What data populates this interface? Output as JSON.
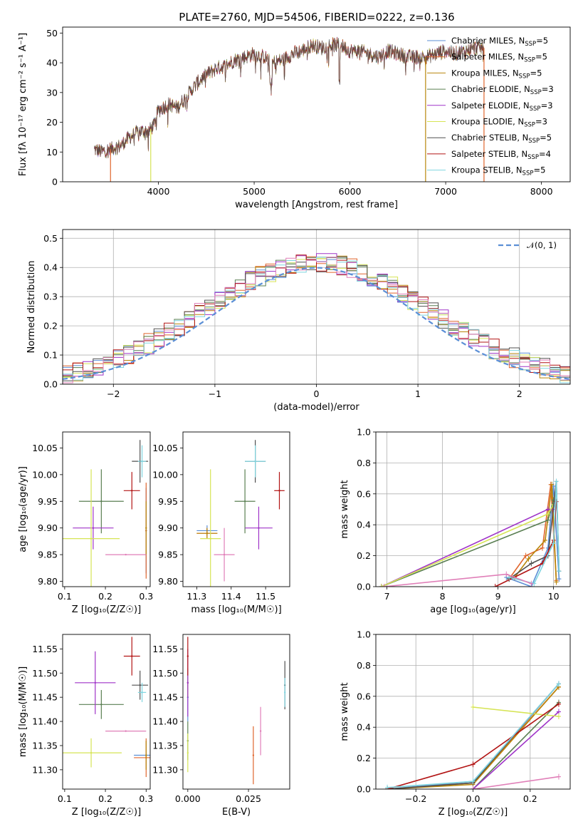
{
  "figure": {
    "title": "PLATE=2760, MJD=54506, FIBERID=0222, z=0.136"
  },
  "colors": {
    "chabrier_miles": "#5b8fd6",
    "salpeter_miles": "#e0662e",
    "kroupa_miles": "#b8860b",
    "chabrier_elodie": "#5a7f52",
    "salpeter_elodie": "#9f34c8",
    "kroupa_elodie": "#d6e455",
    "chabrier_stelib": "#505050",
    "salpeter_stelib": "#b21414",
    "kroupa_stelib": "#7fd5e0",
    "extra_pink": "#e07fb8",
    "gaussian": "#5b8fd6",
    "grid": "#b0b0b0"
  },
  "chart_data": [
    {
      "id": "spectrum",
      "type": "line",
      "title": "PLATE=2760, MJD=54506, FIBERID=0222, z=0.136",
      "xlabel": "wavelength [Angstrom, rest frame]",
      "ylabel": "Flux [fλ 10⁻¹⁷ erg cm⁻² s⁻¹ A⁻¹]",
      "xlim": [
        3000,
        8300
      ],
      "ylim": [
        0,
        52
      ],
      "xticks": [
        4000,
        5000,
        6000,
        7000,
        8000
      ],
      "yticks": [
        0,
        10,
        20,
        30,
        40,
        50
      ],
      "grid": false,
      "legend_position": "top-right",
      "legend": [
        {
          "label": "Chabrier MILES, N",
          "sub": "SSP",
          "post": "=5",
          "color": "#5b8fd6"
        },
        {
          "label": "Salpeter MILES, N",
          "sub": "SSP",
          "post": "=5",
          "color": "#e0662e"
        },
        {
          "label": "Kroupa MILES, N",
          "sub": "SSP",
          "post": "=5",
          "color": "#b8860b"
        },
        {
          "label": "Chabrier ELODIE, N",
          "sub": "SSP",
          "post": "=3",
          "color": "#5a7f52"
        },
        {
          "label": "Salpeter ELODIE, N",
          "sub": "SSP",
          "post": "=3",
          "color": "#9f34c8"
        },
        {
          "label": "Kroupa ELODIE, N",
          "sub": "SSP",
          "post": "=3",
          "color": "#d6e455"
        },
        {
          "label": "Chabrier STELIB, N",
          "sub": "SSP",
          "post": "=5",
          "color": "#505050"
        },
        {
          "label": "Salpeter STELIB, N",
          "sub": "SSP",
          "post": "=4",
          "color": "#b21414"
        },
        {
          "label": "Kroupa STELIB, N",
          "sub": "SSP",
          "post": "=5",
          "color": "#7fd5e0"
        }
      ],
      "x": [
        3330,
        3400,
        3500,
        3600,
        3700,
        3800,
        3900,
        3950,
        4000,
        4100,
        4200,
        4300,
        4400,
        4500,
        4600,
        4700,
        4800,
        4900,
        5000,
        5100,
        5200,
        5300,
        5400,
        5500,
        5600,
        5700,
        5800,
        5900,
        6000,
        6100,
        6200,
        6300,
        6400,
        6500,
        6600,
        6700,
        6800,
        6900,
        7000,
        7100,
        7200,
        7300,
        7400
      ],
      "y": [
        11,
        10,
        11,
        12,
        15,
        17,
        17,
        19,
        24,
        26,
        25,
        29,
        33,
        36,
        38,
        39,
        41,
        42,
        43,
        42,
        40,
        41,
        43,
        44,
        46,
        45,
        46,
        46,
        44,
        44,
        43,
        42,
        44,
        43,
        42,
        42,
        42,
        43,
        44,
        43,
        44,
        45,
        45
      ],
      "model_drop_wavelengths": [
        3500,
        3920,
        6790,
        7400
      ]
    },
    {
      "id": "residuals",
      "type": "bar",
      "xlabel": "(data-model)/error",
      "ylabel": "Normed distribution",
      "xlim": [
        -2.5,
        2.5
      ],
      "ylim": [
        0,
        0.53
      ],
      "xticks": [
        -2,
        -1,
        0,
        1,
        2
      ],
      "yticks": [
        0.0,
        0.1,
        0.2,
        0.3,
        0.4,
        0.5
      ],
      "grid": true,
      "legend_position": "top-right",
      "legend": [
        {
          "label": "𝒩(0, 1)",
          "style": "dashed",
          "color": "#5b8fd6"
        }
      ],
      "bin_width": 0.1,
      "bin_start": -2.5,
      "histogram_approx_peak": 0.5
    },
    {
      "id": "age_vs_Z",
      "type": "scatter",
      "xlabel": "Z [log₁₀(Z/Z☉)]",
      "ylabel": "age  [log₁₀(age/yr)]",
      "xlim": [
        0.095,
        0.31
      ],
      "ylim": [
        9.79,
        10.08
      ],
      "xticks": [
        0.1,
        0.2,
        0.3
      ],
      "yticks": [
        9.8,
        9.85,
        9.9,
        9.95,
        10.0,
        10.05
      ],
      "ytick_labels": [
        "9.80",
        "9.85",
        "9.90",
        "9.95",
        "10.00",
        "10.05"
      ],
      "points": [
        {
          "model": "Chabrier MILES",
          "x": 0.3,
          "y": 9.895,
          "xerr": 0.0,
          "yerr": 0.08
        },
        {
          "model": "Salpeter MILES",
          "x": 0.3,
          "y": 9.895,
          "xerr": 0.0,
          "yerr": 0.09
        },
        {
          "model": "Kroupa MILES",
          "x": 0.3,
          "y": 9.9,
          "xerr": 0.0,
          "yerr": 0.05
        },
        {
          "model": "Chabrier ELODIE",
          "x": 0.19,
          "y": 9.95,
          "xerr": 0.055,
          "yerr": 0.06
        },
        {
          "model": "Salpeter ELODIE",
          "x": 0.17,
          "y": 9.9,
          "xerr": 0.05,
          "yerr": 0.04
        },
        {
          "model": "Kroupa ELODIE",
          "x": 0.165,
          "y": 9.88,
          "xerr": 0.07,
          "yerr": 0.13
        },
        {
          "model": "Chabrier STELIB",
          "x": 0.285,
          "y": 10.025,
          "xerr": 0.02,
          "yerr": 0.04
        },
        {
          "model": "Salpeter STELIB",
          "x": 0.265,
          "y": 9.97,
          "xerr": 0.02,
          "yerr": 0.035
        },
        {
          "model": "Kroupa STELIB",
          "x": 0.29,
          "y": 10.025,
          "xerr": 0.01,
          "yerr": 0.03
        },
        {
          "model": "extra",
          "x": 0.25,
          "y": 9.85,
          "xerr": 0.05,
          "yerr": 0.0
        }
      ]
    },
    {
      "id": "age_vs_mass",
      "type": "scatter",
      "xlabel": "mass [log₁₀(M/M☉)]",
      "xlim": [
        11.26,
        11.57
      ],
      "ylim": [
        9.79,
        10.08
      ],
      "xticks": [
        11.3,
        11.4,
        11.5
      ],
      "yticks": [
        9.8,
        9.85,
        9.9,
        9.95,
        10.0,
        10.05
      ],
      "ytick_labels": [
        "9.80",
        "9.85",
        "9.90",
        "9.95",
        "10.00",
        "10.05"
      ],
      "points": [
        {
          "model": "Chabrier MILES",
          "x": 11.33,
          "y": 9.895,
          "xerr": 0.03,
          "yerr": 0.01
        },
        {
          "model": "Salpeter MILES",
          "x": 11.33,
          "y": 9.89,
          "xerr": 0.03,
          "yerr": 0.01
        },
        {
          "model": "Kroupa MILES",
          "x": 11.33,
          "y": 9.89,
          "xerr": 0.03,
          "yerr": 0.01
        },
        {
          "model": "Chabrier ELODIE",
          "x": 11.44,
          "y": 9.95,
          "xerr": 0.03,
          "yerr": 0.06
        },
        {
          "model": "Salpeter ELODIE",
          "x": 11.48,
          "y": 9.9,
          "xerr": 0.04,
          "yerr": 0.04
        },
        {
          "model": "Kroupa ELODIE",
          "x": 11.34,
          "y": 9.88,
          "xerr": 0.03,
          "yerr": 0.13
        },
        {
          "model": "Chabrier STELIB",
          "x": 11.47,
          "y": 10.025,
          "xerr": 0.03,
          "yerr": 0.04
        },
        {
          "model": "Salpeter STELIB",
          "x": 11.54,
          "y": 9.97,
          "xerr": 0.015,
          "yerr": 0.035
        },
        {
          "model": "Kroupa STELIB",
          "x": 11.47,
          "y": 10.025,
          "xerr": 0.03,
          "yerr": 0.03
        },
        {
          "model": "extra",
          "x": 11.38,
          "y": 9.85,
          "xerr": 0.03,
          "yerr": 0.05
        }
      ]
    },
    {
      "id": "weight_vs_age",
      "type": "line",
      "xlabel": "age  [log₁₀(age/yr)]",
      "ylabel": "mass weight",
      "xlim": [
        6.8,
        10.3
      ],
      "ylim": [
        0,
        1.0
      ],
      "xticks": [
        7,
        8,
        9,
        10
      ],
      "yticks": [
        0.0,
        0.2,
        0.4,
        0.6,
        0.8,
        1.0
      ],
      "grid": true,
      "series": [
        {
          "model": "Chabrier MILES",
          "x": [
            9.15,
            9.6,
            9.9,
            10.0,
            10.1
          ],
          "y": [
            0.06,
            0.0,
            0.25,
            0.65,
            0.05
          ]
        },
        {
          "model": "Salpeter MILES",
          "x": [
            9.2,
            9.5,
            9.8,
            9.95,
            10.05
          ],
          "y": [
            0.05,
            0.2,
            0.25,
            0.66,
            0.04
          ]
        },
        {
          "model": "Kroupa MILES",
          "x": [
            9.3,
            9.55,
            9.85,
            9.97,
            10.05
          ],
          "y": [
            0.06,
            0.18,
            0.3,
            0.66,
            0.03
          ]
        },
        {
          "model": "Chabrier ELODIE",
          "x": [
            6.9,
            9.9,
            10.0
          ],
          "y": [
            0.0,
            0.43,
            0.56
          ]
        },
        {
          "model": "Salpeter ELODIE",
          "x": [
            6.9,
            9.9,
            10.0
          ],
          "y": [
            0.0,
            0.5,
            0.5
          ]
        },
        {
          "model": "Kroupa ELODIE",
          "x": [
            6.9,
            9.9,
            10.0
          ],
          "y": [
            0.0,
            0.47,
            0.53
          ]
        },
        {
          "model": "Chabrier STELIB",
          "x": [
            9.2,
            9.6,
            9.9,
            10.05,
            10.1
          ],
          "y": [
            0.05,
            0.15,
            0.2,
            0.68,
            0.1
          ]
        },
        {
          "model": "Salpeter STELIB",
          "x": [
            8.95,
            9.8,
            10.0,
            10.05
          ],
          "y": [
            0.0,
            0.15,
            0.3,
            0.55
          ]
        },
        {
          "model": "Kroupa STELIB",
          "x": [
            9.2,
            9.65,
            10.0,
            10.05,
            10.1
          ],
          "y": [
            0.06,
            0.02,
            0.28,
            0.68,
            0.1
          ]
        },
        {
          "model": "extra",
          "x": [
            6.95,
            9.15,
            9.6
          ],
          "y": [
            0.0,
            0.08,
            0.02
          ]
        }
      ]
    },
    {
      "id": "mass_vs_Z",
      "type": "scatter",
      "xlabel": "Z [log₁₀(Z/Z☉)]",
      "ylabel": "mass [log₁₀(M/M☉)]",
      "xlim": [
        0.095,
        0.31
      ],
      "ylim": [
        11.26,
        11.58
      ],
      "xticks": [
        0.1,
        0.2,
        0.3
      ],
      "yticks": [
        11.3,
        11.35,
        11.4,
        11.45,
        11.5,
        11.55
      ],
      "ytick_labels": [
        "11.30",
        "11.35",
        "11.40",
        "11.45",
        "11.50",
        "11.55"
      ],
      "points": [
        {
          "model": "Chabrier MILES",
          "x": 0.3,
          "y": 11.33,
          "xerr": 0.03,
          "yerr": 0.0
        },
        {
          "model": "Salpeter MILES",
          "x": 0.3,
          "y": 11.325,
          "xerr": 0.03,
          "yerr": 0.04
        },
        {
          "model": "Kroupa MILES",
          "x": 0.3,
          "y": 11.33,
          "xerr": 0.0,
          "yerr": 0.03
        },
        {
          "model": "Chabrier ELODIE",
          "x": 0.19,
          "y": 11.435,
          "xerr": 0.055,
          "yerr": 0.03
        },
        {
          "model": "Salpeter ELODIE",
          "x": 0.175,
          "y": 11.48,
          "xerr": 0.05,
          "yerr": 0.065
        },
        {
          "model": "Kroupa ELODIE",
          "x": 0.165,
          "y": 11.335,
          "xerr": 0.075,
          "yerr": 0.03
        },
        {
          "model": "Chabrier STELIB",
          "x": 0.285,
          "y": 11.475,
          "xerr": 0.02,
          "yerr": 0.03
        },
        {
          "model": "Salpeter STELIB",
          "x": 0.265,
          "y": 11.535,
          "xerr": 0.02,
          "yerr": 0.04
        },
        {
          "model": "Kroupa STELIB",
          "x": 0.29,
          "y": 11.46,
          "xerr": 0.01,
          "yerr": 0.02
        },
        {
          "model": "extra",
          "x": 0.25,
          "y": 11.38,
          "xerr": 0.05,
          "yerr": 0.0
        }
      ]
    },
    {
      "id": "mass_vs_EBV",
      "type": "scatter",
      "xlabel": "E(B-V)",
      "xlim": [
        -0.002,
        0.042
      ],
      "ylim": [
        11.26,
        11.58
      ],
      "xticks": [
        0.0,
        0.025
      ],
      "xtick_labels": [
        "0.000",
        "0.025"
      ],
      "yticks": [
        11.3,
        11.35,
        11.4,
        11.45,
        11.5,
        11.55
      ],
      "ytick_labels": [
        "11.30",
        "11.35",
        "11.40",
        "11.45",
        "11.50",
        "11.55"
      ],
      "points": [
        {
          "model": "Chabrier MILES",
          "x": 0.0,
          "y": 11.45,
          "xerr": 0.0,
          "yerr": 0.05
        },
        {
          "model": "Salpeter MILES",
          "x": 0.027,
          "y": 11.33,
          "xerr": 0.0,
          "yerr": 0.06
        },
        {
          "model": "Kroupa MILES",
          "x": 0.0,
          "y": 11.48,
          "xerr": 0.0,
          "yerr": 0.03
        },
        {
          "model": "Chabrier ELODIE",
          "x": 0.0,
          "y": 11.36,
          "xerr": 0.0,
          "yerr": 0.04
        },
        {
          "model": "Salpeter ELODIE",
          "x": 0.0,
          "y": 11.48,
          "xerr": 0.0,
          "yerr": 0.07
        },
        {
          "model": "Kroupa ELODIE",
          "x": 0.0,
          "y": 11.335,
          "xerr": 0.0,
          "yerr": 0.04
        },
        {
          "model": "Chabrier STELIB",
          "x": 0.04,
          "y": 11.475,
          "xerr": 0.0,
          "yerr": 0.05
        },
        {
          "model": "Salpeter STELIB",
          "x": 0.0,
          "y": 11.535,
          "xerr": 0.0,
          "yerr": 0.04
        },
        {
          "model": "Kroupa STELIB",
          "x": 0.04,
          "y": 11.46,
          "xerr": 0.0,
          "yerr": 0.03
        },
        {
          "model": "extra",
          "x": 0.03,
          "y": 11.38,
          "xerr": 0.0,
          "yerr": 0.05
        }
      ]
    },
    {
      "id": "weight_vs_Z",
      "type": "line",
      "xlabel": "Z [log₁₀(Z/Z☉)]",
      "ylabel": "mass weight",
      "xlim": [
        -0.34,
        0.34
      ],
      "ylim": [
        0,
        1.0
      ],
      "xticks": [
        -0.2,
        0.0,
        0.2
      ],
      "xtick_labels": [
        "−0.2",
        "0.0",
        "0.2"
      ],
      "yticks": [
        0.0,
        0.2,
        0.4,
        0.6,
        0.8,
        1.0
      ],
      "grid": true,
      "series": [
        {
          "model": "Chabrier MILES",
          "x": [
            -0.3,
            0.0,
            0.3
          ],
          "y": [
            0.0,
            0.05,
            0.68
          ]
        },
        {
          "model": "Salpeter MILES",
          "x": [
            -0.3,
            0.0,
            0.3
          ],
          "y": [
            0.0,
            0.04,
            0.66
          ]
        },
        {
          "model": "Kroupa MILES",
          "x": [
            -0.3,
            0.0,
            0.3
          ],
          "y": [
            0.0,
            0.03,
            0.66
          ]
        },
        {
          "model": "Chabrier ELODIE",
          "x": [
            0.0,
            0.3
          ],
          "y": [
            0.0,
            0.56
          ]
        },
        {
          "model": "Salpeter ELODIE",
          "x": [
            0.0,
            0.3
          ],
          "y": [
            0.0,
            0.5
          ]
        },
        {
          "model": "Kroupa ELODIE",
          "x": [
            0.0,
            0.3
          ],
          "y": [
            0.53,
            0.47
          ]
        },
        {
          "model": "Chabrier STELIB",
          "x": [
            -0.3,
            0.0,
            0.3
          ],
          "y": [
            0.0,
            0.04,
            0.68
          ]
        },
        {
          "model": "Salpeter STELIB",
          "x": [
            -0.3,
            0.0,
            0.3
          ],
          "y": [
            0.0,
            0.16,
            0.55
          ]
        },
        {
          "model": "Kroupa STELIB",
          "x": [
            -0.3,
            0.0,
            0.3
          ],
          "y": [
            0.01,
            0.05,
            0.68
          ]
        },
        {
          "model": "extra",
          "x": [
            0.0,
            0.3
          ],
          "y": [
            0.0,
            0.08
          ]
        }
      ]
    }
  ]
}
